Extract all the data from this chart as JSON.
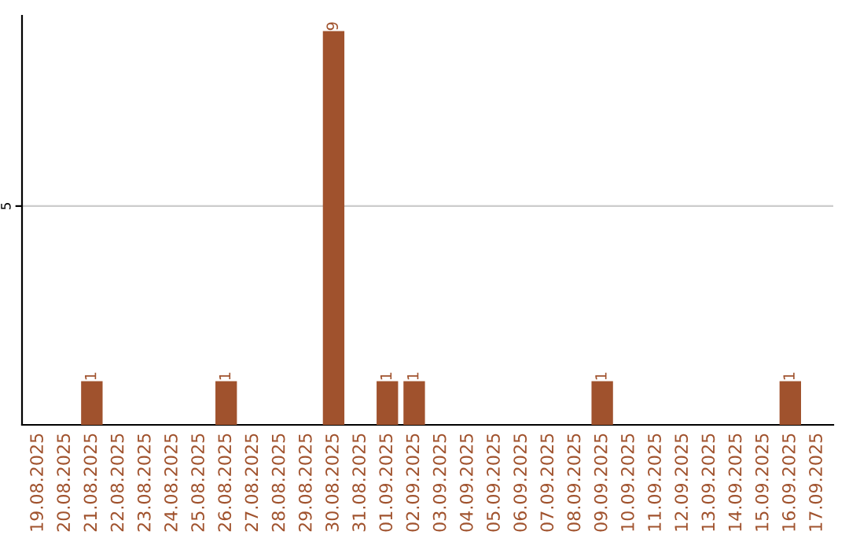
{
  "chart_data": {
    "type": "bar",
    "categories": [
      "19.08.2025",
      "20.08.2025",
      "21.08.2025",
      "22.08.2025",
      "23.08.2025",
      "24.08.2025",
      "25.08.2025",
      "26.08.2025",
      "27.08.2025",
      "28.08.2025",
      "29.08.2025",
      "30.08.2025",
      "31.08.2025",
      "01.09.2025",
      "02.09.2025",
      "03.09.2025",
      "04.09.2025",
      "05.09.2025",
      "06.09.2025",
      "07.09.2025",
      "08.09.2025",
      "09.09.2025",
      "10.09.2025",
      "11.09.2025",
      "12.09.2025",
      "13.09.2025",
      "14.09.2025",
      "15.09.2025",
      "16.09.2025",
      "17.09.2025"
    ],
    "values": [
      0,
      0,
      1,
      0,
      0,
      0,
      0,
      1,
      0,
      0,
      0,
      9,
      0,
      1,
      1,
      0,
      0,
      0,
      0,
      0,
      0,
      1,
      0,
      0,
      0,
      0,
      0,
      0,
      1,
      0
    ],
    "value_labels": [
      null,
      null,
      "1",
      null,
      null,
      null,
      null,
      "1",
      null,
      null,
      null,
      "9",
      null,
      "1",
      "1",
      null,
      null,
      null,
      null,
      null,
      null,
      "1",
      null,
      null,
      null,
      null,
      null,
      null,
      "1",
      null
    ],
    "color": "#a0522d",
    "ylim": [
      0,
      9.35
    ],
    "yticks": [
      5
    ],
    "grid": "y"
  }
}
